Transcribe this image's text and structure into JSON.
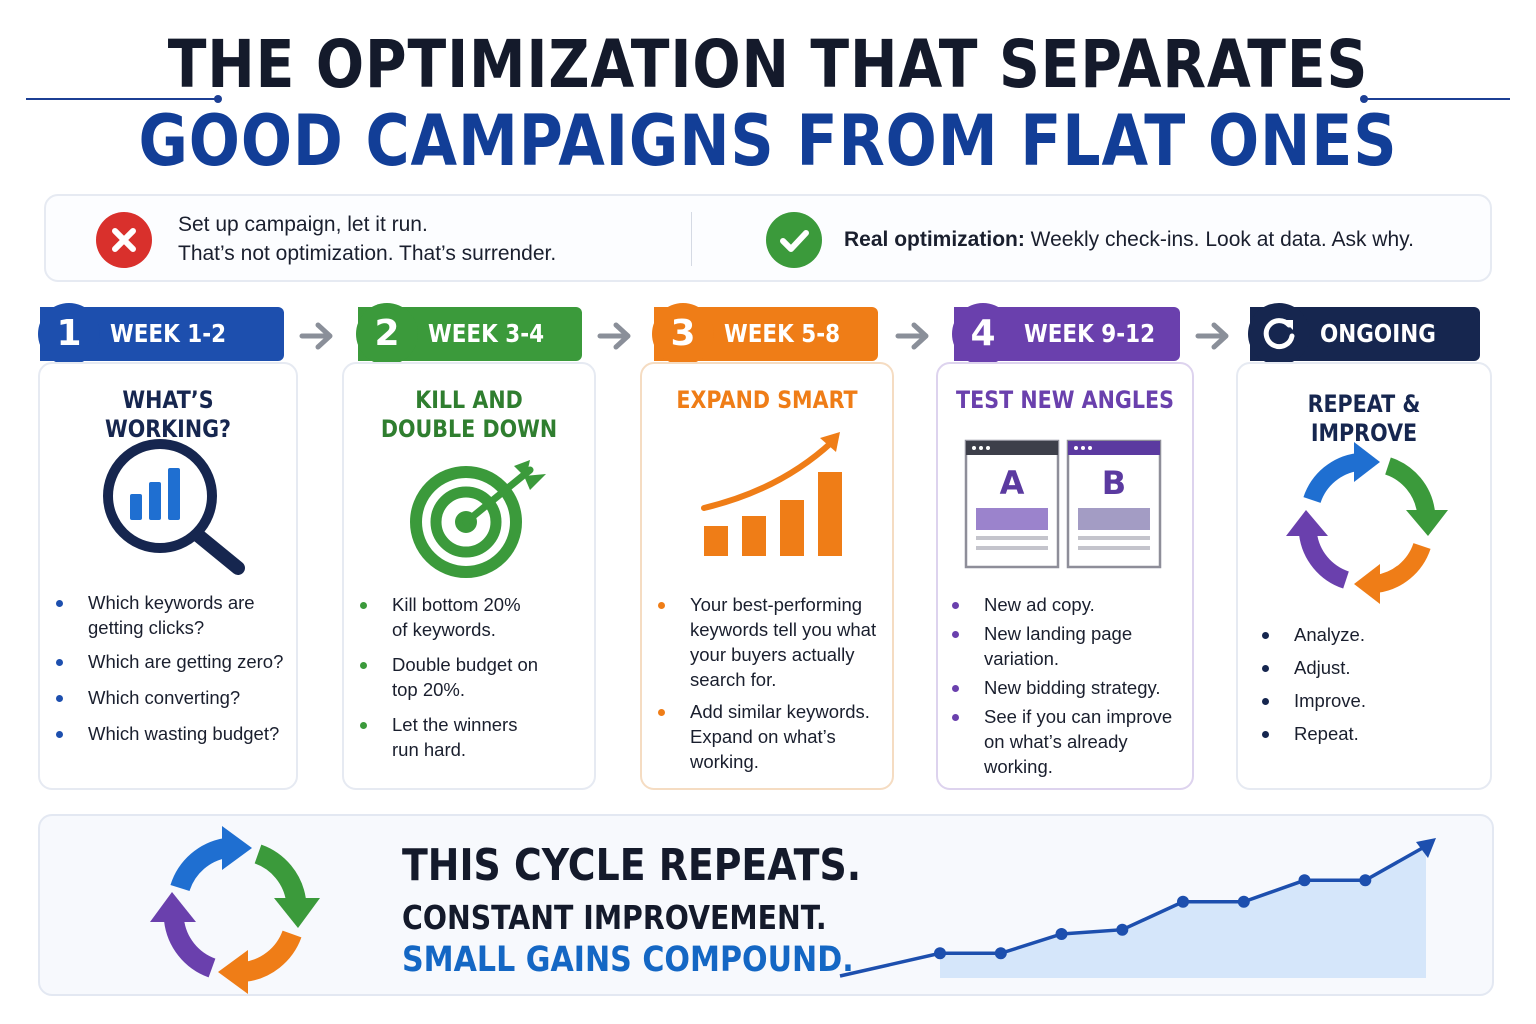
{
  "title": {
    "line1": "THE OPTIMIZATION THAT SEPARATES",
    "line2": "GOOD CAMPAIGNS FROM FLAT ONES"
  },
  "comparison": {
    "bad_line1": "Set up campaign, let it run.",
    "bad_line2": "That’s not optimization. That’s surrender.",
    "good_bold": "Real optimization:",
    "good_rest": " Weekly check-ins. Look at data. Ask why."
  },
  "colors": {
    "blue": "#1d4fae",
    "green": "#3b9a3b",
    "orange": "#ef7d17",
    "purple": "#6a40ad",
    "navy": "#16264f"
  },
  "steps": [
    {
      "number": "1",
      "label": "WEEK 1-2",
      "title": [
        "WHAT’S WORKING?"
      ],
      "icon": "magnifier-bar-chart-icon",
      "bullets": [
        [
          "Which keywords are",
          "getting clicks?"
        ],
        [
          "Which are getting zero?"
        ],
        [
          "Which converting?"
        ],
        [
          "Which wasting budget?"
        ]
      ]
    },
    {
      "number": "2",
      "label": "WEEK 3-4",
      "title": [
        "KILL AND",
        "DOUBLE DOWN"
      ],
      "icon": "target-arrow-icon",
      "bullets": [
        [
          "Kill bottom 20%",
          "of keywords."
        ],
        [
          "Double budget on",
          "top 20%."
        ],
        [
          "Let the winners",
          "run hard."
        ]
      ]
    },
    {
      "number": "3",
      "label": "WEEK 5-8",
      "title": [
        "EXPAND SMART"
      ],
      "icon": "growth-chart-icon",
      "bullets": [
        [
          "Your best-performing",
          "keywords tell you what",
          "your buyers actually",
          "search for."
        ],
        [
          "Add similar keywords.",
          "Expand on what’s",
          "working."
        ]
      ]
    },
    {
      "number": "4",
      "label": "WEEK 9-12",
      "title": [
        "TEST NEW ANGLES"
      ],
      "icon": "ab-test-icon",
      "ab": [
        "A",
        "B"
      ],
      "bullets": [
        [
          "New ad copy."
        ],
        [
          "New landing page",
          "variation."
        ],
        [
          "New bidding strategy."
        ],
        [
          "See if you can improve",
          "on what’s already",
          "working."
        ]
      ]
    },
    {
      "number": "",
      "label": "ONGOING",
      "title": [
        "REPEAT & IMPROVE"
      ],
      "icon": "refresh-cycle-icon",
      "bullets": [
        [
          "Analyze."
        ],
        [
          "Adjust."
        ],
        [
          "Improve."
        ],
        [
          "Repeat."
        ]
      ]
    }
  ],
  "bottom": {
    "line1": "THIS CYCLE REPEATS.",
    "line2": "CONSTANT IMPROVEMENT.",
    "line3": "SMALL GAINS COMPOUND.",
    "growth_values": [
      1,
      1,
      2.8,
      3.2,
      5.8,
      5.8,
      7.8,
      7.8,
      11
    ]
  }
}
